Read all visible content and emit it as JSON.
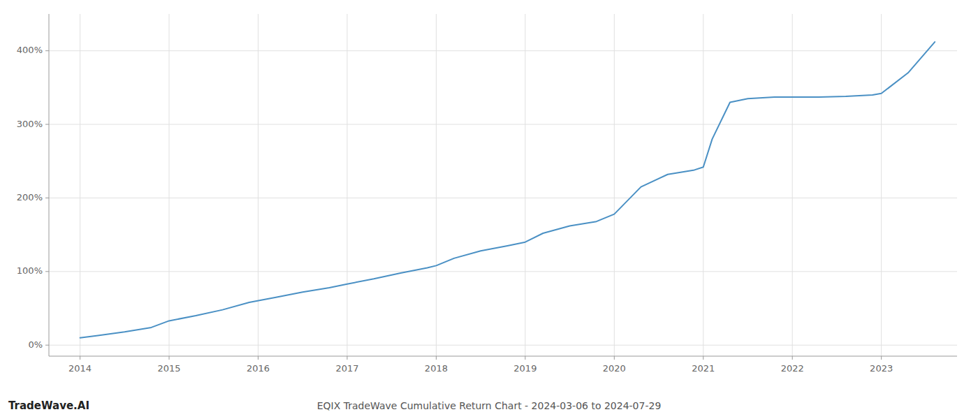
{
  "chart_data": {
    "type": "line",
    "title": "EQIX TradeWave Cumulative Return Chart - 2024-03-06 to 2024-07-29",
    "annotations": [
      "TradeWave.AI"
    ],
    "color": "#4a90c4",
    "grid": true,
    "x": [
      2014.0,
      2014.2,
      2014.5,
      2014.8,
      2015.0,
      2015.3,
      2015.6,
      2015.9,
      2016.2,
      2016.5,
      2016.8,
      2017.0,
      2017.3,
      2017.6,
      2017.9,
      2018.0,
      2018.2,
      2018.5,
      2018.8,
      2019.0,
      2019.2,
      2019.5,
      2019.8,
      2020.0,
      2020.3,
      2020.6,
      2020.9,
      2021.0,
      2021.1,
      2021.3,
      2021.5,
      2021.8,
      2022.0,
      2022.3,
      2022.6,
      2022.9,
      2023.0,
      2023.3,
      2023.6
    ],
    "values": [
      10,
      13,
      18,
      24,
      33,
      40,
      48,
      58,
      65,
      72,
      78,
      83,
      90,
      98,
      105,
      108,
      118,
      128,
      135,
      140,
      152,
      162,
      168,
      178,
      215,
      232,
      238,
      242,
      280,
      330,
      335,
      337,
      337,
      337,
      338,
      340,
      342,
      370,
      412
    ],
    "xlim": [
      2013.65,
      2023.85
    ],
    "xticks": [
      2014,
      2015,
      2016,
      2017,
      2018,
      2019,
      2020,
      2021,
      2022,
      2023
    ],
    "ylim": [
      -15,
      450
    ],
    "yticks": [
      {
        "value": 0,
        "label": "0%"
      },
      {
        "value": 100,
        "label": "100%"
      },
      {
        "value": 200,
        "label": "200%"
      },
      {
        "value": 300,
        "label": "300%"
      },
      {
        "value": 400,
        "label": "400%"
      }
    ]
  }
}
